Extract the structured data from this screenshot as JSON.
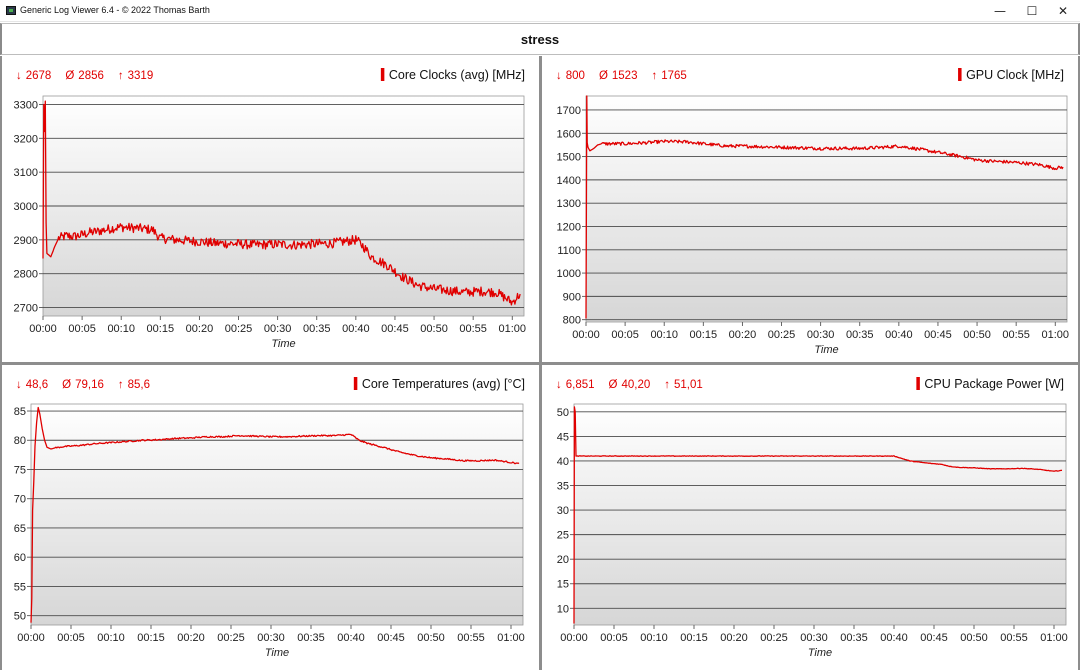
{
  "window": {
    "title": "Generic Log Viewer 6.4 - © 2022 Thomas Barth",
    "minimize_icon": "minimize-icon",
    "maximize_icon": "maximize-icon",
    "close_icon": "close-icon",
    "minimize_glyph": "—",
    "maximize_glyph": "☐",
    "close_glyph": "✕"
  },
  "header": {
    "title": "stress"
  },
  "colors": {
    "series": "#e00000",
    "grid": "#4a4a4a",
    "plot_top": "#ffffff",
    "plot_bottom": "#d6d6d6"
  },
  "chart_data": [
    {
      "type": "line",
      "title": "Core Clocks (avg) [MHz]",
      "stats": {
        "min": "2678",
        "avg": "2856",
        "max": "3319"
      },
      "stat_symbols": {
        "min": "↓",
        "avg": "Ø",
        "max": "↑"
      },
      "xlabel": "Time",
      "ylabel": "",
      "xticks": [
        "00:00",
        "00:05",
        "00:10",
        "00:15",
        "00:20",
        "00:25",
        "00:30",
        "00:35",
        "00:40",
        "00:45",
        "00:50",
        "00:55",
        "01:00"
      ],
      "yticks": [
        2700,
        2800,
        2900,
        3000,
        3100,
        3200,
        3300
      ],
      "xlim": [
        0,
        61.5
      ],
      "ylim": [
        2675,
        3325
      ],
      "grid": true,
      "noise": 14,
      "series": [
        {
          "x": [
            0,
            0.1,
            0.2,
            0.3,
            0.4,
            0.5,
            1,
            1.5,
            2,
            3,
            4,
            5,
            6,
            7,
            8,
            9,
            10,
            11,
            12,
            13,
            14,
            15,
            17,
            20,
            22,
            25,
            27,
            30,
            32,
            35,
            37,
            40,
            41,
            42,
            44,
            46,
            48,
            50,
            52,
            54,
            56,
            58,
            60,
            61
          ],
          "y": [
            2845,
            3300,
            3220,
            3310,
            2950,
            2860,
            2850,
            2880,
            2905,
            2912,
            2910,
            2915,
            2922,
            2925,
            2930,
            2935,
            2938,
            2936,
            2935,
            2932,
            2930,
            2905,
            2900,
            2895,
            2890,
            2888,
            2885,
            2887,
            2885,
            2888,
            2890,
            2900,
            2880,
            2850,
            2825,
            2790,
            2765,
            2755,
            2750,
            2745,
            2748,
            2745,
            2715,
            2740
          ]
        }
      ]
    },
    {
      "type": "line",
      "title": "GPU Clock [MHz]",
      "stats": {
        "min": "800",
        "avg": "1523",
        "max": "1765"
      },
      "stat_symbols": {
        "min": "↓",
        "avg": "Ø",
        "max": "↑"
      },
      "xlabel": "Time",
      "ylabel": "",
      "xticks": [
        "00:00",
        "00:05",
        "00:10",
        "00:15",
        "00:20",
        "00:25",
        "00:30",
        "00:35",
        "00:40",
        "00:45",
        "00:50",
        "00:55",
        "01:00"
      ],
      "yticks": [
        800,
        900,
        1000,
        1100,
        1200,
        1300,
        1400,
        1500,
        1600,
        1700
      ],
      "xlim": [
        0,
        61.5
      ],
      "ylim": [
        790,
        1760
      ],
      "grid": true,
      "noise": 7,
      "series": [
        {
          "x": [
            0,
            0.1,
            0.15,
            0.25,
            0.5,
            1,
            1.5,
            2,
            5,
            8,
            10,
            13,
            15,
            18,
            20,
            25,
            30,
            35,
            38,
            40,
            42,
            45,
            48,
            50,
            52,
            55,
            58,
            60,
            61
          ],
          "y": [
            805,
            1760,
            1560,
            1540,
            1525,
            1535,
            1550,
            1555,
            1555,
            1560,
            1565,
            1563,
            1555,
            1545,
            1545,
            1540,
            1535,
            1535,
            1540,
            1545,
            1535,
            1518,
            1500,
            1485,
            1480,
            1475,
            1465,
            1450,
            1455
          ]
        }
      ]
    },
    {
      "type": "line",
      "title": "Core Temperatures (avg) [°C]",
      "stats": {
        "min": "48,6",
        "avg": "79,16",
        "max": "85,6"
      },
      "stat_symbols": {
        "min": "↓",
        "avg": "Ø",
        "max": "↑"
      },
      "xlabel": "Time",
      "ylabel": "",
      "xticks": [
        "00:00",
        "00:05",
        "00:10",
        "00:15",
        "00:20",
        "00:25",
        "00:30",
        "00:35",
        "00:40",
        "00:45",
        "00:50",
        "00:55",
        "01:00"
      ],
      "yticks": [
        50,
        55,
        60,
        65,
        70,
        75,
        80,
        85
      ],
      "xlim": [
        0,
        61.5
      ],
      "ylim": [
        48.4,
        86.2
      ],
      "grid": true,
      "noise": 0.12,
      "series": [
        {
          "x": [
            0,
            0.1,
            0.2,
            0.35,
            0.5,
            0.7,
            0.9,
            1.1,
            1.4,
            1.7,
            2,
            2.5,
            3,
            4,
            6,
            8,
            10,
            12,
            14,
            16,
            18,
            20,
            22,
            24,
            26,
            28,
            30,
            32,
            34,
            36,
            38,
            40,
            41,
            42,
            44,
            46,
            48,
            50,
            52,
            54,
            56,
            58,
            60,
            61
          ],
          "y": [
            48.8,
            53,
            68,
            73,
            79,
            83,
            85.6,
            84.5,
            82,
            80,
            78.8,
            78.5,
            78.7,
            78.9,
            79.1,
            79.4,
            79.6,
            79.8,
            80.0,
            80.1,
            80.3,
            80.4,
            80.6,
            80.6,
            80.8,
            80.7,
            80.6,
            80.6,
            80.7,
            80.8,
            80.8,
            81.0,
            80.0,
            79.5,
            78.8,
            78.0,
            77.4,
            77.0,
            76.8,
            76.5,
            76.5,
            76.6,
            76.2,
            76.0
          ]
        }
      ]
    },
    {
      "type": "line",
      "title": "CPU Package Power [W]",
      "stats": {
        "min": "6,851",
        "avg": "40,20",
        "max": "51,01"
      },
      "stat_symbols": {
        "min": "↓",
        "avg": "Ø",
        "max": "↑"
      },
      "xlabel": "Time",
      "ylabel": "",
      "xticks": [
        "00:00",
        "00:05",
        "00:10",
        "00:15",
        "00:20",
        "00:25",
        "00:30",
        "00:35",
        "00:40",
        "00:45",
        "00:50",
        "00:55",
        "01:00"
      ],
      "yticks": [
        10,
        15,
        20,
        25,
        30,
        35,
        40,
        45,
        50
      ],
      "xlim": [
        0,
        61.5
      ],
      "ylim": [
        6.6,
        51.6
      ],
      "grid": true,
      "noise": 0.05,
      "series": [
        {
          "x": [
            0,
            0.05,
            0.15,
            0.25,
            0.4,
            1,
            5,
            10,
            15,
            20,
            25,
            30,
            35,
            40,
            41,
            42,
            44,
            46,
            47,
            48,
            50,
            52,
            54,
            56,
            58,
            60,
            61
          ],
          "y": [
            6.9,
            51,
            50,
            41,
            41,
            41,
            41,
            41,
            41,
            41,
            41,
            41,
            41,
            41,
            40.5,
            40.0,
            39.6,
            39.3,
            38.9,
            38.7,
            38.6,
            38.4,
            38.4,
            38.5,
            38.3,
            37.9,
            38.1
          ]
        }
      ]
    }
  ]
}
